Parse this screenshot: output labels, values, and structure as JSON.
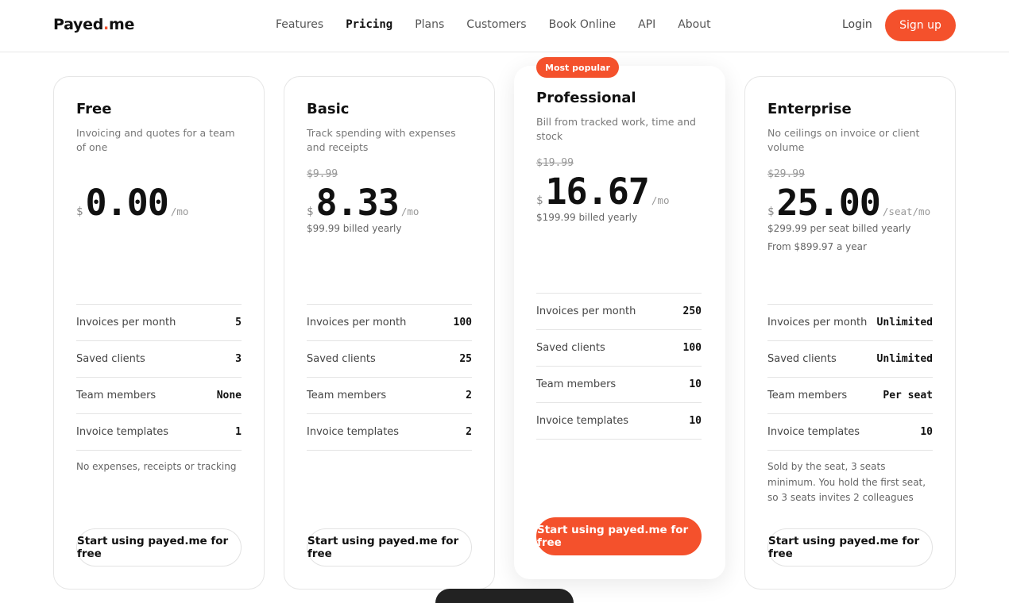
{
  "header": {
    "logo": {
      "name": "Payed",
      "dot": ".",
      "tld": "me"
    },
    "nav": [
      "Features",
      "Pricing",
      "Plans",
      "Customers",
      "Book Online",
      "API",
      "About"
    ],
    "current_nav": 1,
    "login": "Login",
    "signup": "Sign up"
  },
  "plans": [
    {
      "name": "Free",
      "description": "Invoicing and quotes for a team of one",
      "currency": "$",
      "price": "0.00",
      "unit": "/mo",
      "features": [
        {
          "label": "Invoices per month",
          "value": "5"
        },
        {
          "label": "Saved clients",
          "value": "3"
        },
        {
          "label": "Team members",
          "value": "None"
        },
        {
          "label": "Invoice templates",
          "value": "1"
        }
      ],
      "note": "No expenses, receipts or tracking",
      "cta": "Start using payed.me for free"
    },
    {
      "name": "Basic",
      "description": "Track spending with expenses and receipts",
      "old_price": "$9.99",
      "currency": "$",
      "price": "8.33",
      "unit": "/mo",
      "billing": "$99.99 billed yearly",
      "features": [
        {
          "label": "Invoices per month",
          "value": "100"
        },
        {
          "label": "Saved clients",
          "value": "25"
        },
        {
          "label": "Team members",
          "value": "2"
        },
        {
          "label": "Invoice templates",
          "value": "2"
        }
      ],
      "cta": "Start using payed.me for free"
    },
    {
      "name": "Professional",
      "badge": "Most popular",
      "featured": true,
      "description": "Bill from tracked work, time and stock",
      "old_price": "$19.99",
      "currency": "$",
      "price": "16.67",
      "unit": "/mo",
      "billing": "$199.99 billed yearly",
      "features": [
        {
          "label": "Invoices per month",
          "value": "250"
        },
        {
          "label": "Saved clients",
          "value": "100"
        },
        {
          "label": "Team members",
          "value": "10"
        },
        {
          "label": "Invoice templates",
          "value": "10"
        }
      ],
      "cta": "Start using payed.me for free"
    },
    {
      "name": "Enterprise",
      "description": "No ceilings on invoice or client volume",
      "old_price": "$29.99",
      "currency": "$",
      "price": "25.00",
      "unit": "/seat/mo",
      "billing": "$299.99 per seat billed yearly",
      "extra": "From $899.97 a year",
      "features": [
        {
          "label": "Invoices per month",
          "value": "Unlimited"
        },
        {
          "label": "Saved clients",
          "value": "Unlimited"
        },
        {
          "label": "Team members",
          "value": "Per seat"
        },
        {
          "label": "Invoice templates",
          "value": "10"
        }
      ],
      "note": "Sold by the seat, 3 seats minimum. You hold the first seat, so 3 seats invites 2 colleagues",
      "cta": "Start using payed.me for free"
    }
  ]
}
